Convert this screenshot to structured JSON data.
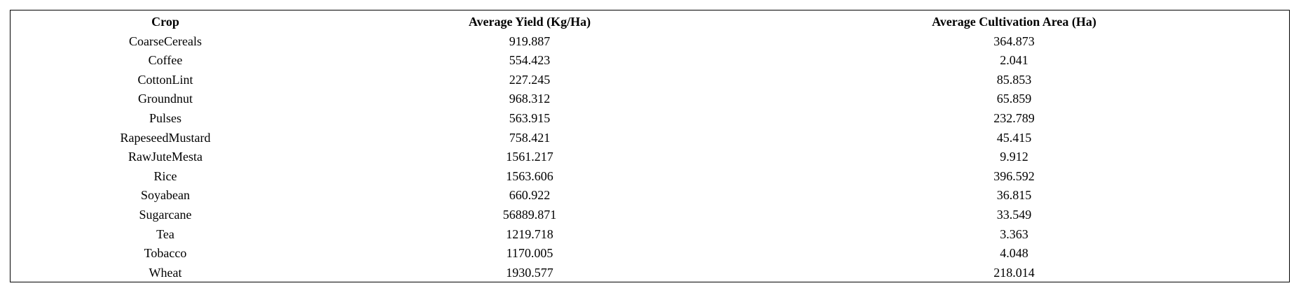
{
  "table": {
    "headers": [
      "Crop",
      "Average Yield (Kg/Ha)",
      "Average Cultivation Area (Ha)"
    ],
    "rows": [
      [
        "CoarseCereals",
        "919.887",
        "364.873"
      ],
      [
        "Coffee",
        "554.423",
        "2.041"
      ],
      [
        "CottonLint",
        "227.245",
        "85.853"
      ],
      [
        "Groundnut",
        "968.312",
        "65.859"
      ],
      [
        "Pulses",
        "563.915",
        "232.789"
      ],
      [
        "RapeseedMustard",
        "758.421",
        "45.415"
      ],
      [
        "RawJuteMesta",
        "1561.217",
        "9.912"
      ],
      [
        "Rice",
        "1563.606",
        "396.592"
      ],
      [
        "Soyabean",
        "660.922",
        "36.815"
      ],
      [
        "Sugarcane",
        "56889.871",
        "33.549"
      ],
      [
        "Tea",
        "1219.718",
        "3.363"
      ],
      [
        "Tobacco",
        "1170.005",
        "4.048"
      ],
      [
        "Wheat",
        "1930.577",
        "218.014"
      ]
    ]
  },
  "chart_data": {
    "type": "table",
    "columns": [
      "Crop",
      "Average Yield (Kg/Ha)",
      "Average Cultivation Area (Ha)"
    ],
    "rows": [
      {
        "crop": "CoarseCereals",
        "avg_yield": 919.887,
        "avg_area": 364.873
      },
      {
        "crop": "Coffee",
        "avg_yield": 554.423,
        "avg_area": 2.041
      },
      {
        "crop": "CottonLint",
        "avg_yield": 227.245,
        "avg_area": 85.853
      },
      {
        "crop": "Groundnut",
        "avg_yield": 968.312,
        "avg_area": 65.859
      },
      {
        "crop": "Pulses",
        "avg_yield": 563.915,
        "avg_area": 232.789
      },
      {
        "crop": "RapeseedMustard",
        "avg_yield": 758.421,
        "avg_area": 45.415
      },
      {
        "crop": "RawJuteMesta",
        "avg_yield": 1561.217,
        "avg_area": 9.912
      },
      {
        "crop": "Rice",
        "avg_yield": 1563.606,
        "avg_area": 396.592
      },
      {
        "crop": "Soyabean",
        "avg_yield": 660.922,
        "avg_area": 36.815
      },
      {
        "crop": "Sugarcane",
        "avg_yield": 56889.871,
        "avg_area": 33.549
      },
      {
        "crop": "Tea",
        "avg_yield": 1219.718,
        "avg_area": 3.363
      },
      {
        "crop": "Tobacco",
        "avg_yield": 1170.005,
        "avg_area": 4.048
      },
      {
        "crop": "Wheat",
        "avg_yield": 1930.577,
        "avg_area": 218.014
      }
    ]
  }
}
